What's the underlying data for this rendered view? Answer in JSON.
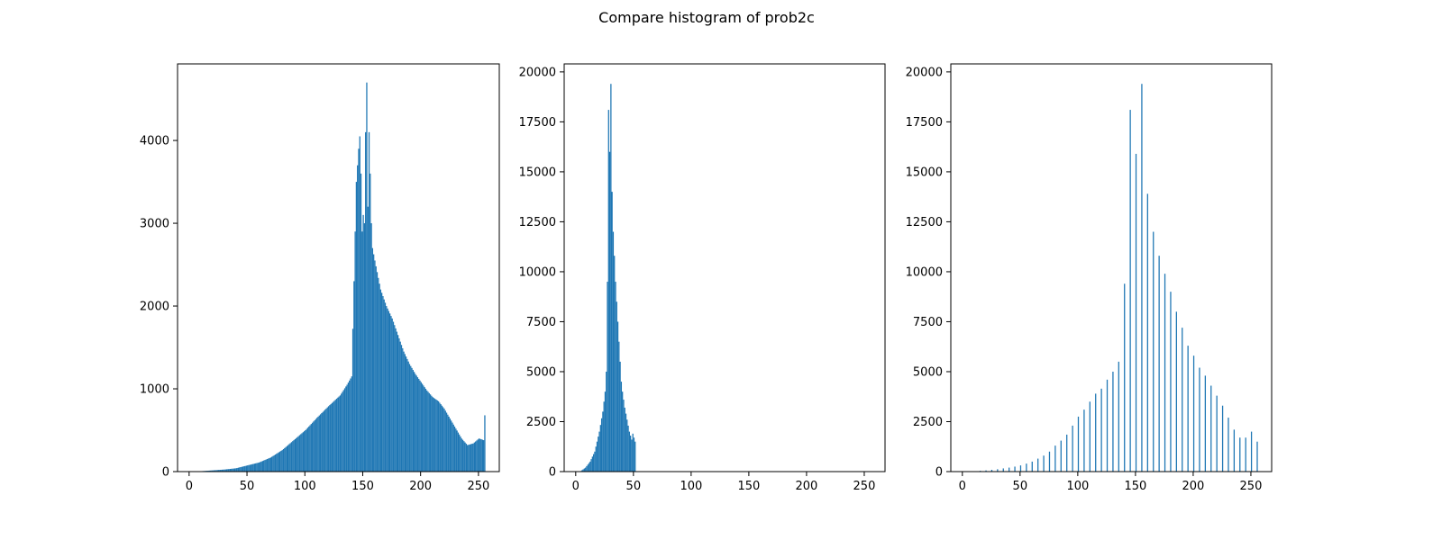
{
  "figure": {
    "title": "Compare histogram of prob2c"
  },
  "colors": {
    "bar": "#1f77b4",
    "axes": "#000000",
    "background": "#ffffff"
  },
  "chart_data": [
    {
      "type": "bar",
      "subtype": "histogram",
      "title": "",
      "xlabel": "",
      "ylabel": "",
      "xlim": [
        -10,
        268
      ],
      "ylim": [
        0,
        4925
      ],
      "xticks": [
        0,
        50,
        100,
        150,
        200,
        250
      ],
      "yticks": [
        0,
        1000,
        2000,
        3000,
        4000
      ],
      "grid": false,
      "bin_width": 1,
      "profile": [
        [
          0,
          0
        ],
        [
          10,
          5
        ],
        [
          20,
          15
        ],
        [
          30,
          25
        ],
        [
          40,
          40
        ],
        [
          50,
          75
        ],
        [
          60,
          110
        ],
        [
          70,
          170
        ],
        [
          80,
          260
        ],
        [
          90,
          380
        ],
        [
          100,
          500
        ],
        [
          110,
          650
        ],
        [
          120,
          790
        ],
        [
          130,
          920
        ],
        [
          136,
          1050
        ],
        [
          140,
          1150
        ],
        [
          142,
          2300
        ],
        [
          144,
          3500
        ],
        [
          146,
          3900
        ],
        [
          147,
          4050
        ],
        [
          148,
          3600
        ],
        [
          149,
          2900
        ],
        [
          150,
          3100
        ],
        [
          151,
          3000
        ],
        [
          152,
          4100
        ],
        [
          153,
          4700
        ],
        [
          154,
          3200
        ],
        [
          155,
          4100
        ],
        [
          156,
          3600
        ],
        [
          157,
          3000
        ],
        [
          158,
          2700
        ],
        [
          160,
          2550
        ],
        [
          165,
          2200
        ],
        [
          170,
          2000
        ],
        [
          175,
          1850
        ],
        [
          180,
          1650
        ],
        [
          185,
          1450
        ],
        [
          190,
          1300
        ],
        [
          195,
          1180
        ],
        [
          200,
          1080
        ],
        [
          205,
          980
        ],
        [
          210,
          900
        ],
        [
          215,
          850
        ],
        [
          220,
          760
        ],
        [
          225,
          640
        ],
        [
          230,
          520
        ],
        [
          235,
          400
        ],
        [
          240,
          320
        ],
        [
          245,
          340
        ],
        [
          250,
          400
        ],
        [
          254,
          380
        ],
        [
          255,
          680
        ],
        [
          256,
          0
        ]
      ]
    },
    {
      "type": "bar",
      "subtype": "histogram",
      "title": "",
      "xlabel": "",
      "ylabel": "",
      "xlim": [
        -10,
        268
      ],
      "ylim": [
        0,
        20400
      ],
      "xticks": [
        0,
        50,
        100,
        150,
        200,
        250
      ],
      "yticks": [
        0,
        2500,
        5000,
        7500,
        10000,
        12500,
        15000,
        17500,
        20000
      ],
      "grid": false,
      "bin_width": 1,
      "profile": [
        [
          0,
          0
        ],
        [
          4,
          30
        ],
        [
          8,
          200
        ],
        [
          12,
          500
        ],
        [
          16,
          1000
        ],
        [
          20,
          2000
        ],
        [
          23,
          3000
        ],
        [
          25,
          4000
        ],
        [
          26,
          5000
        ],
        [
          27,
          9500
        ],
        [
          28,
          18100
        ],
        [
          29,
          16000
        ],
        [
          30,
          19400
        ],
        [
          31,
          14000
        ],
        [
          32,
          12000
        ],
        [
          33,
          10800
        ],
        [
          34,
          9500
        ],
        [
          35,
          8500
        ],
        [
          36,
          7500
        ],
        [
          37,
          6500
        ],
        [
          38,
          5500
        ],
        [
          39,
          4500
        ],
        [
          40,
          4000
        ],
        [
          42,
          3200
        ],
        [
          44,
          2600
        ],
        [
          46,
          2000
        ],
        [
          48,
          1600
        ],
        [
          49,
          1900
        ],
        [
          50,
          1700
        ],
        [
          51,
          1500
        ],
        [
          52,
          0
        ]
      ]
    },
    {
      "type": "bar",
      "subtype": "histogram",
      "title": "",
      "xlabel": "",
      "ylabel": "",
      "xlim": [
        -10,
        268
      ],
      "ylim": [
        0,
        20400
      ],
      "xticks": [
        0,
        50,
        100,
        150,
        200,
        250
      ],
      "yticks": [
        0,
        2500,
        5000,
        7500,
        10000,
        12500,
        15000,
        17500,
        20000
      ],
      "grid": false,
      "bin_width": 1,
      "x": [
        15,
        20,
        25,
        30,
        35,
        40,
        45,
        50,
        55,
        60,
        65,
        70,
        75,
        80,
        85,
        90,
        95,
        100,
        105,
        110,
        115,
        120,
        125,
        130,
        135,
        140,
        145,
        150,
        155,
        160,
        165,
        170,
        175,
        180,
        185,
        190,
        195,
        200,
        205,
        210,
        215,
        220,
        225,
        230,
        235,
        240,
        245,
        250,
        255
      ],
      "values": [
        40,
        60,
        90,
        120,
        160,
        200,
        250,
        310,
        400,
        500,
        650,
        800,
        1000,
        1300,
        1550,
        1850,
        2300,
        2750,
        3100,
        3500,
        3900,
        4150,
        4600,
        5000,
        5500,
        9400,
        18100,
        15900,
        19400,
        13900,
        12000,
        10800,
        9900,
        9000,
        8000,
        7200,
        6300,
        5800,
        5200,
        4800,
        4300,
        3800,
        3300,
        2700,
        2100,
        1700,
        1700,
        2000,
        1500
      ]
    }
  ]
}
